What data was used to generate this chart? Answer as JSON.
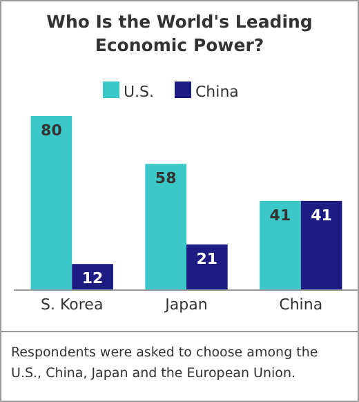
{
  "chart_data": {
    "type": "bar",
    "title": "Who Is the World's Leading Economic Power?",
    "categories": [
      "S. Korea",
      "Japan",
      "China"
    ],
    "series": [
      {
        "name": "U.S.",
        "color": "#3cc8c8",
        "values": [
          80,
          58,
          41
        ]
      },
      {
        "name": "China",
        "color": "#1c1c82",
        "values": [
          12,
          21,
          41
        ]
      }
    ],
    "data_labels": true,
    "legend": "top",
    "relative": false,
    "annotations": [
      "Respondents were asked to choose among the U.S., China, Japan and the European Union."
    ]
  }
}
